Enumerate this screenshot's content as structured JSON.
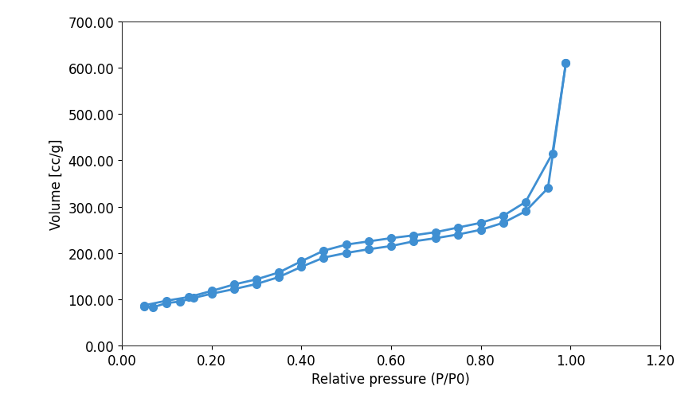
{
  "chart_data": {
    "type": "line",
    "x_label": "Relative pressure (P/P0)",
    "y_label": "Volume [cc/g]",
    "series": [
      {
        "color": "#3f8fd2",
        "marker": "o",
        "line_style": "solid",
        "x": [
          0.05,
          0.07,
          0.1,
          0.13,
          0.16,
          0.2,
          0.25,
          0.3,
          0.35,
          0.4,
          0.45,
          0.5,
          0.55,
          0.6,
          0.65,
          0.7,
          0.75,
          0.8,
          0.85,
          0.9,
          0.95,
          0.99
        ],
        "values": [
          85,
          83,
          92,
          95,
          103,
          112,
          122,
          133,
          148,
          170,
          190,
          200,
          208,
          215,
          225,
          232,
          240,
          250,
          265,
          290,
          340,
          610
        ]
      },
      {
        "color": "#3f8fd2",
        "marker": "o",
        "line_style": "solid",
        "x": [
          0.99,
          0.96,
          0.9,
          0.85,
          0.8,
          0.75,
          0.7,
          0.65,
          0.6,
          0.55,
          0.5,
          0.45,
          0.4,
          0.35,
          0.3,
          0.25,
          0.2,
          0.15,
          0.1,
          0.05
        ],
        "values": [
          610,
          415,
          310,
          280,
          265,
          255,
          245,
          238,
          232,
          225,
          218,
          205,
          182,
          158,
          143,
          132,
          118,
          105,
          97,
          87
        ]
      }
    ],
    "xlim": [
      0,
      1.2
    ],
    "xticks": [
      {
        "value": 0,
        "label": "0.00"
      },
      {
        "value": 0.2,
        "label": "0.20"
      },
      {
        "value": 0.4,
        "label": "0.40"
      },
      {
        "value": 0.6,
        "label": "0.60"
      },
      {
        "value": 0.8,
        "label": "0.80"
      },
      {
        "value": 1.0,
        "label": "1.00"
      },
      {
        "value": 1.2,
        "label": "1.20"
      }
    ],
    "ylim": [
      0,
      700
    ],
    "yticks": [
      {
        "value": 0,
        "label": "0.00"
      },
      {
        "value": 100,
        "label": "100.00"
      },
      {
        "value": 200,
        "label": "200.00"
      },
      {
        "value": 300,
        "label": "300.00"
      },
      {
        "value": 400,
        "label": "400.00"
      },
      {
        "value": 500,
        "label": "500.00"
      },
      {
        "value": 600,
        "label": "600.00"
      },
      {
        "value": 700,
        "label": "700.00"
      }
    ],
    "grid": false
  }
}
